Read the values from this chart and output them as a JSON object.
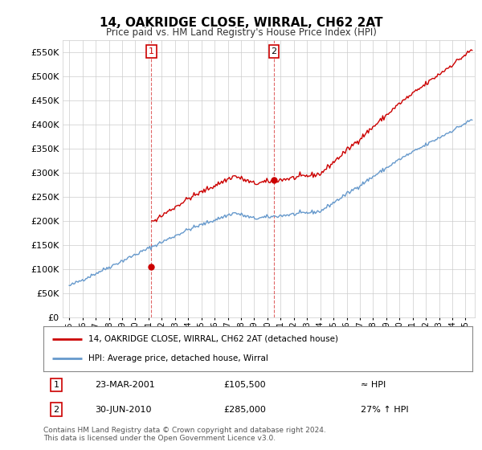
{
  "title": "14, OAKRIDGE CLOSE, WIRRAL, CH62 2AT",
  "subtitle": "Price paid vs. HM Land Registry's House Price Index (HPI)",
  "ylim": [
    0,
    575000
  ],
  "yticks": [
    0,
    50000,
    100000,
    150000,
    200000,
    250000,
    300000,
    350000,
    400000,
    450000,
    500000,
    550000
  ],
  "legend_line1": "14, OAKRIDGE CLOSE, WIRRAL, CH62 2AT (detached house)",
  "legend_line2": "HPI: Average price, detached house, Wirral",
  "annotation1_date": "23-MAR-2001",
  "annotation1_price": "£105,500",
  "annotation1_hpi": "≈ HPI",
  "annotation2_date": "30-JUN-2010",
  "annotation2_price": "£285,000",
  "annotation2_hpi": "27% ↑ HPI",
  "sale1_year": 2001.22,
  "sale1_price": 105500,
  "sale2_year": 2010.5,
  "sale2_price": 285000,
  "hpi_color": "#6699cc",
  "price_color": "#cc0000",
  "vline_color": "#cc0000",
  "plot_bg_color": "#ffffff",
  "grid_color": "#cccccc",
  "footer": "Contains HM Land Registry data © Crown copyright and database right 2024.\nThis data is licensed under the Open Government Licence v3.0."
}
